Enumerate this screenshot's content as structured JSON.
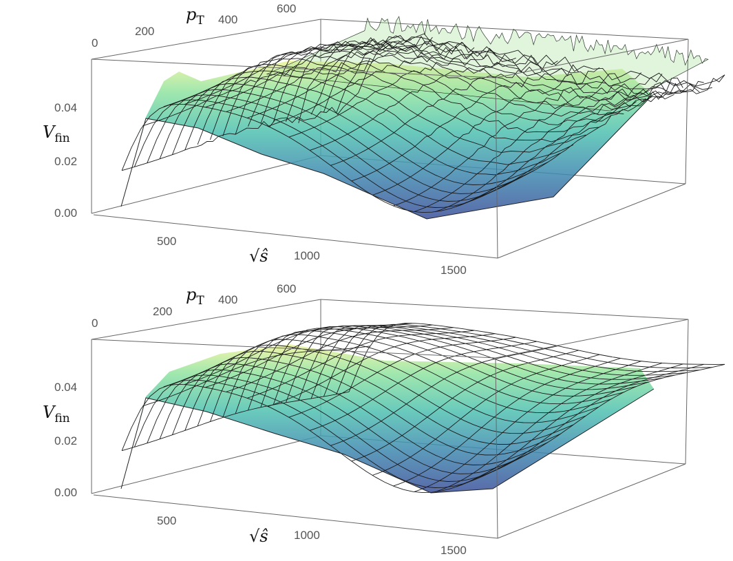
{
  "chart_data": [
    {
      "type": "surface",
      "zlabel": "V",
      "zlabel_sub": "fin",
      "xlabel": "√ŝ",
      "ylabel": "p",
      "ylabel_sub": "T",
      "z_ticks": [
        "0.00",
        "0.02",
        "0.04"
      ],
      "x_ticks": [
        "500",
        "1000",
        "1500"
      ],
      "y_ticks": [
        "0",
        "200",
        "400",
        "600"
      ],
      "zlim": [
        0,
        0.06
      ],
      "xlim": [
        300,
        1600
      ],
      "ylim": [
        0,
        600
      ],
      "noisy": true,
      "colormap": [
        "#3b4f9a",
        "#3f8cb0",
        "#4fc1b0",
        "#8fe3a0",
        "#eef39a"
      ]
    },
    {
      "type": "surface",
      "zlabel": "V",
      "zlabel_sub": "fin",
      "xlabel": "√ŝ",
      "ylabel": "p",
      "ylabel_sub": "T",
      "z_ticks": [
        "0.00",
        "0.02",
        "0.04"
      ],
      "x_ticks": [
        "500",
        "1000",
        "1500"
      ],
      "y_ticks": [
        "0",
        "200",
        "400",
        "600"
      ],
      "zlim": [
        0,
        0.06
      ],
      "xlim": [
        300,
        1600
      ],
      "ylim": [
        0,
        600
      ],
      "noisy": false,
      "colormap": [
        "#3b4f9a",
        "#3f8cb0",
        "#4fc1b0",
        "#8fe3a0",
        "#eef39a"
      ]
    }
  ]
}
